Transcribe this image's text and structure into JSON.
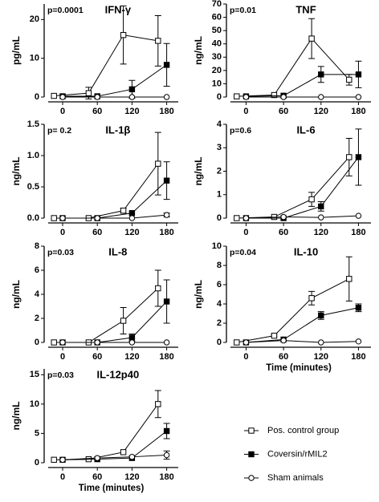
{
  "legend": [
    {
      "name": "Pos. control group",
      "marker": "open-square"
    },
    {
      "name": "Coversin/rMIL2",
      "marker": "filled-square"
    },
    {
      "name": "Sham animals",
      "marker": "open-circle"
    }
  ],
  "chart_data": [
    {
      "type": "line",
      "title": "IFN-γ",
      "annotation": "p=0.0001",
      "y_label": "pg/mL",
      "xlim": [
        -25,
        200
      ],
      "xticks": [
        0,
        60,
        120,
        180
      ],
      "ylim": [
        0,
        24
      ],
      "yticks": [
        0,
        10,
        20
      ],
      "series": [
        {
          "x": [
            -15,
            45,
            105,
            165
          ],
          "values": [
            0.3,
            1,
            16,
            14.5
          ],
          "errors": [
            0,
            1.5,
            7.5,
            6.5
          ]
        },
        {
          "x": [
            0,
            60,
            120,
            180
          ],
          "values": [
            0.2,
            0.2,
            2,
            8.3
          ],
          "errors": [
            0,
            0,
            2.3,
            5.5
          ]
        },
        {
          "x": [
            0,
            60,
            120,
            180
          ],
          "values": [
            0,
            0,
            0,
            0
          ],
          "errors": [
            0,
            0,
            0,
            0
          ]
        }
      ]
    },
    {
      "type": "line",
      "title": "TNF",
      "annotation": "p=0.01",
      "y_label": "ng/mL",
      "xlim": [
        -25,
        200
      ],
      "xticks": [
        0,
        60,
        120,
        180
      ],
      "ylim": [
        0,
        70
      ],
      "yticks": [
        0,
        10,
        20,
        30,
        40,
        50,
        60,
        70
      ],
      "series": [
        {
          "x": [
            -15,
            45,
            105,
            165
          ],
          "values": [
            0.5,
            1.5,
            44,
            13
          ],
          "errors": [
            0,
            0,
            15,
            4
          ]
        },
        {
          "x": [
            0,
            60,
            120,
            180
          ],
          "values": [
            0.5,
            1,
            17,
            17
          ],
          "errors": [
            0,
            0,
            6,
            10
          ]
        },
        {
          "x": [
            0,
            60,
            120,
            180
          ],
          "values": [
            0,
            0,
            0,
            0
          ],
          "errors": [
            0,
            0,
            0,
            0
          ]
        }
      ]
    },
    {
      "type": "line",
      "title": "IL-1β",
      "annotation": "p= 0.2",
      "y_label": "ng/mL",
      "xlim": [
        -25,
        200
      ],
      "xticks": [
        0,
        60,
        120,
        180
      ],
      "ylim": [
        0,
        1.5
      ],
      "yticks": [
        {
          "value": 0,
          "label": "0.0"
        },
        0.5,
        {
          "value": 1,
          "label": "1.0"
        },
        1.5
      ],
      "series": [
        {
          "x": [
            -15,
            45,
            105,
            165
          ],
          "values": [
            0,
            0,
            0.12,
            0.87
          ],
          "errors": [
            0,
            0,
            0.04,
            0.5
          ]
        },
        {
          "x": [
            0,
            60,
            120,
            180
          ],
          "values": [
            0,
            0,
            0.08,
            0.6
          ],
          "errors": [
            0,
            0,
            0,
            0.3
          ]
        },
        {
          "x": [
            0,
            60,
            120,
            180
          ],
          "values": [
            0,
            0,
            0,
            0.05
          ],
          "errors": [
            0,
            0,
            0,
            0.03
          ]
        }
      ]
    },
    {
      "type": "line",
      "title": "IL-6",
      "annotation": "p=0.6",
      "y_label": "ng/mL",
      "xlim": [
        -25,
        200
      ],
      "xticks": [
        0,
        60,
        120,
        180
      ],
      "ylim": [
        0,
        4
      ],
      "yticks": [
        0,
        1,
        2,
        3,
        4
      ],
      "series": [
        {
          "x": [
            -15,
            45,
            105,
            165
          ],
          "values": [
            0,
            0.05,
            0.8,
            2.6
          ],
          "errors": [
            0,
            0,
            0.3,
            0.8
          ]
        },
        {
          "x": [
            0,
            60,
            120,
            180
          ],
          "values": [
            0,
            0,
            0.5,
            2.6
          ],
          "errors": [
            0,
            0,
            0.2,
            1.2
          ]
        },
        {
          "x": [
            0,
            60,
            120,
            180
          ],
          "values": [
            0,
            0.05,
            0.03,
            0.1
          ],
          "errors": [
            0,
            0,
            0,
            0
          ]
        }
      ]
    },
    {
      "type": "line",
      "title": "IL-8",
      "annotation": "p=0.03",
      "y_label": "ng/mL",
      "xlim": [
        -25,
        200
      ],
      "xticks": [
        0,
        60,
        120,
        180
      ],
      "ylim": [
        0,
        8
      ],
      "yticks": [
        0,
        2,
        4,
        6,
        8
      ],
      "series": [
        {
          "x": [
            -15,
            45,
            105,
            165
          ],
          "values": [
            0,
            0,
            1.8,
            4.5
          ],
          "errors": [
            0,
            0,
            1.1,
            1.5
          ]
        },
        {
          "x": [
            0,
            60,
            120,
            180
          ],
          "values": [
            0,
            0,
            0.4,
            3.4
          ],
          "errors": [
            0,
            0,
            0.3,
            1.8
          ]
        },
        {
          "x": [
            0,
            60,
            120,
            180
          ],
          "values": [
            0,
            0,
            0,
            0
          ],
          "errors": [
            0,
            0,
            0,
            0
          ]
        }
      ]
    },
    {
      "type": "line",
      "title": "IL-10",
      "annotation": "p=0.04",
      "y_label": "ng/mL",
      "x_label": "Time (minutes)",
      "xlim": [
        -25,
        200
      ],
      "xticks": [
        0,
        60,
        120,
        180
      ],
      "ylim": [
        0,
        10
      ],
      "yticks": [
        0,
        2,
        4,
        6,
        8,
        10
      ],
      "series": [
        {
          "x": [
            -15,
            45,
            105,
            165
          ],
          "values": [
            0,
            0.7,
            4.6,
            6.6
          ],
          "errors": [
            0,
            0.1,
            0.7,
            2.3
          ]
        },
        {
          "x": [
            0,
            60,
            120,
            180
          ],
          "values": [
            0,
            0.3,
            2.8,
            3.6
          ],
          "errors": [
            0,
            0,
            0.4,
            0.4
          ]
        },
        {
          "x": [
            0,
            60,
            120,
            180
          ],
          "values": [
            0,
            0.2,
            0,
            0.1
          ],
          "errors": [
            0,
            0,
            0,
            0
          ]
        }
      ]
    },
    {
      "type": "line",
      "title": "IL-12p40",
      "annotation": "p=0.03",
      "y_label": "ng/mL",
      "x_label": "Time (minutes)",
      "xlim": [
        -25,
        200
      ],
      "xticks": [
        0,
        60,
        120,
        180
      ],
      "ylim": [
        0,
        16
      ],
      "yticks": [
        0,
        5,
        10,
        15
      ],
      "series": [
        {
          "x": [
            -15,
            45,
            105,
            165
          ],
          "values": [
            0.5,
            0.6,
            1.8,
            10
          ],
          "errors": [
            0,
            0,
            0,
            2.3
          ]
        },
        {
          "x": [
            0,
            60,
            120,
            180
          ],
          "values": [
            0.5,
            0.6,
            0.8,
            5.4
          ],
          "errors": [
            0,
            0,
            0,
            1.3
          ]
        },
        {
          "x": [
            0,
            60,
            120,
            180
          ],
          "values": [
            0.5,
            0.8,
            1,
            1.3
          ],
          "errors": [
            0,
            0,
            0,
            0.7
          ]
        }
      ]
    }
  ]
}
